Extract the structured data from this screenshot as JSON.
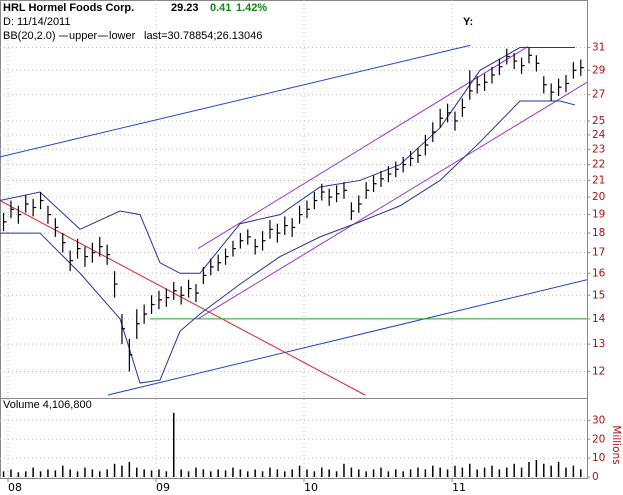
{
  "header": {
    "symbol_name": "HRL Hormel Foods Corp.",
    "last": "29.23",
    "change": "0.41",
    "change_pct": "1.42%",
    "date": "D: 11/14/2011",
    "y_marker": "Y:"
  },
  "chart_data": [
    {
      "type": "ohlc",
      "indicator": "BB(20,2.0)",
      "indicator_note": "last=30.78854;26.13046",
      "log_scale": true,
      "grid": true,
      "color": "#000000",
      "xlim": [
        2007.946,
        2011.912
      ],
      "xticks": [
        {
          "value": 2008,
          "label": "08"
        },
        {
          "value": 2009,
          "label": "09"
        },
        {
          "value": 2010,
          "label": "10"
        },
        {
          "value": 2011,
          "label": "11"
        }
      ],
      "ylim": [
        11.2,
        34.1
      ],
      "yticks": [
        12,
        13,
        14,
        15,
        16,
        17,
        18,
        19,
        20,
        21,
        22,
        23,
        24,
        25,
        27,
        29,
        31
      ],
      "x": [
        2007.97,
        2008.02,
        2008.07,
        2008.12,
        2008.17,
        2008.22,
        2008.27,
        2008.32,
        2008.37,
        2008.42,
        2008.47,
        2008.52,
        2008.57,
        2008.62,
        2008.67,
        2008.72,
        2008.77,
        2008.82,
        2008.87,
        2008.92,
        2008.97,
        2009.02,
        2009.07,
        2009.12,
        2009.17,
        2009.22,
        2009.27,
        2009.32,
        2009.37,
        2009.42,
        2009.47,
        2009.52,
        2009.57,
        2009.62,
        2009.67,
        2009.72,
        2009.77,
        2009.82,
        2009.87,
        2009.92,
        2009.97,
        2010.02,
        2010.07,
        2010.12,
        2010.17,
        2010.22,
        2010.27,
        2010.32,
        2010.37,
        2010.42,
        2010.47,
        2010.52,
        2010.57,
        2010.62,
        2010.67,
        2010.72,
        2010.77,
        2010.82,
        2010.87,
        2010.92,
        2010.97,
        2011.02,
        2011.07,
        2011.12,
        2011.17,
        2011.22,
        2011.27,
        2011.32,
        2011.37,
        2011.42,
        2011.47,
        2011.52,
        2011.57,
        2011.62,
        2011.67,
        2011.72,
        2011.77,
        2011.82,
        2011.87
      ],
      "high": [
        19.1,
        19.8,
        19.5,
        20.1,
        19.9,
        20.3,
        19.5,
        18.8,
        18.0,
        17.1,
        17.7,
        17.3,
        17.5,
        17.8,
        17.4,
        16.1,
        14.2,
        13.2,
        14.4,
        14.6,
        15.0,
        15.2,
        15.3,
        15.6,
        15.4,
        15.7,
        15.5,
        16.3,
        16.7,
        16.9,
        17.2,
        17.6,
        18.0,
        18.2,
        17.7,
        18.1,
        18.7,
        18.5,
        18.9,
        18.8,
        19.5,
        19.8,
        20.3,
        20.8,
        20.5,
        20.7,
        20.9,
        19.7,
        20.1,
        20.9,
        21.3,
        21.6,
        21.9,
        22.2,
        22.5,
        22.9,
        23.1,
        24.0,
        24.9,
        25.9,
        26.3,
        25.7,
        26.7,
        29.0,
        28.5,
        28.7,
        29.3,
        30.0,
        30.9,
        30.5,
        30.1,
        31.0,
        30.3,
        28.5,
        27.9,
        28.3,
        28.6,
        29.7,
        29.93
      ],
      "low": [
        18.1,
        18.8,
        18.5,
        19.1,
        18.9,
        19.3,
        18.5,
        17.8,
        17.0,
        16.1,
        16.7,
        16.3,
        16.5,
        16.8,
        16.4,
        14.9,
        13.0,
        12.0,
        13.2,
        13.8,
        14.2,
        14.4,
        14.5,
        14.8,
        14.6,
        14.9,
        14.7,
        15.5,
        15.9,
        16.1,
        16.4,
        16.8,
        17.2,
        17.4,
        16.9,
        17.1,
        17.7,
        17.5,
        17.9,
        17.8,
        18.5,
        18.8,
        19.3,
        19.8,
        19.5,
        19.7,
        19.9,
        18.7,
        19.1,
        19.9,
        20.3,
        20.6,
        20.9,
        21.2,
        21.5,
        21.9,
        22.1,
        22.6,
        23.5,
        24.5,
        24.9,
        24.3,
        25.3,
        26.6,
        27.1,
        27.3,
        27.9,
        28.6,
        29.5,
        29.1,
        28.7,
        29.6,
        28.9,
        27.1,
        26.5,
        26.9,
        27.2,
        28.3,
        28.53
      ],
      "close": [
        18.6,
        19.3,
        19.0,
        19.6,
        19.4,
        19.8,
        19.0,
        18.3,
        17.5,
        16.6,
        17.2,
        16.8,
        17.0,
        17.3,
        16.9,
        15.5,
        13.6,
        12.6,
        13.8,
        14.2,
        14.6,
        14.8,
        14.9,
        15.2,
        15.0,
        15.3,
        15.1,
        15.9,
        16.3,
        16.5,
        16.8,
        17.2,
        17.6,
        17.8,
        17.3,
        17.6,
        18.2,
        18.0,
        18.4,
        18.3,
        19.0,
        19.3,
        19.8,
        20.3,
        20.0,
        20.2,
        20.4,
        19.2,
        19.6,
        20.4,
        20.8,
        21.1,
        21.4,
        21.7,
        22.0,
        22.4,
        22.6,
        23.3,
        24.2,
        25.2,
        25.6,
        25.0,
        26.0,
        27.3,
        27.8,
        28.0,
        28.6,
        29.3,
        30.2,
        29.8,
        29.4,
        30.3,
        29.6,
        27.8,
        27.2,
        27.6,
        27.9,
        29.0,
        29.23
      ],
      "series": [
        {
          "name": "upper",
          "color": "#22339a",
          "x": [
            2007.946,
            2008.216,
            2008.487,
            2008.757,
            2008.892,
            2009.027,
            2009.162,
            2009.297,
            2009.568,
            2009.838,
            2010.108,
            2010.378,
            2010.649,
            2010.919,
            2011.189,
            2011.459,
            2011.73,
            2011.831
          ],
          "values": [
            19.8,
            20.3,
            18.2,
            19.2,
            19.0,
            16.5,
            16.0,
            16.0,
            18.5,
            19.0,
            20.6,
            21.0,
            22.0,
            24.5,
            29.0,
            31.0,
            31.0,
            31.0
          ]
        },
        {
          "name": "lower",
          "color": "#22339a",
          "x": [
            2007.946,
            2008.216,
            2008.487,
            2008.757,
            2008.892,
            2009.027,
            2009.162,
            2009.297,
            2009.568,
            2009.838,
            2010.108,
            2010.378,
            2010.649,
            2010.919,
            2011.189,
            2011.459,
            2011.73,
            2011.831
          ],
          "values": [
            18.0,
            18.0,
            16.0,
            14.0,
            11.6,
            11.7,
            13.5,
            14.2,
            15.5,
            16.8,
            17.8,
            18.6,
            19.5,
            21.0,
            23.5,
            26.5,
            26.5,
            26.2
          ]
        }
      ],
      "trendlines": [
        {
          "color": "#2244cc",
          "x": [
            2007.946,
            2011.122
          ],
          "values": [
            22.5,
            31.2
          ]
        },
        {
          "color": "#2244cc",
          "x": [
            2008.676,
            2011.912
          ],
          "values": [
            11.2,
            15.7
          ]
        },
        {
          "color": "#dd2222",
          "x": [
            2007.946,
            2010.412
          ],
          "values": [
            19.8,
            11.2
          ]
        },
        {
          "color": "#22aa22",
          "x": [
            2008.959,
            2011.912
          ],
          "values": [
            14.0,
            14.0
          ]
        },
        {
          "color": "#9933cc",
          "x": [
            2009.284,
            2011.514
          ],
          "values": [
            17.2,
            31.1
          ]
        },
        {
          "color": "#9933cc",
          "x": [
            2009.284,
            2011.912
          ],
          "values": [
            14.0,
            28.0
          ]
        }
      ]
    },
    {
      "type": "bar",
      "title": "Volume 4,106,800",
      "y_label": "Millions",
      "color": "#000000",
      "ylim": [
        0,
        35.5
      ],
      "yticks": [
        0,
        10,
        20,
        30
      ],
      "values": [
        3,
        4,
        2.5,
        3,
        5,
        3,
        4,
        3.5,
        6,
        4,
        3,
        5,
        4,
        3,
        4,
        7,
        6,
        8,
        5,
        4,
        3.5,
        4,
        3,
        34,
        4,
        3,
        5,
        4,
        3,
        4,
        3.5,
        5,
        4,
        3,
        4,
        3,
        5,
        4,
        3,
        4,
        6,
        4,
        3,
        5,
        4,
        3,
        7,
        5,
        4,
        3,
        4,
        5,
        3,
        4,
        3,
        4,
        5,
        4,
        6,
        5,
        4,
        6,
        5,
        7,
        4,
        5,
        6,
        4,
        5,
        7,
        5,
        8,
        9,
        7,
        6,
        8,
        5,
        6,
        4
      ]
    }
  ]
}
